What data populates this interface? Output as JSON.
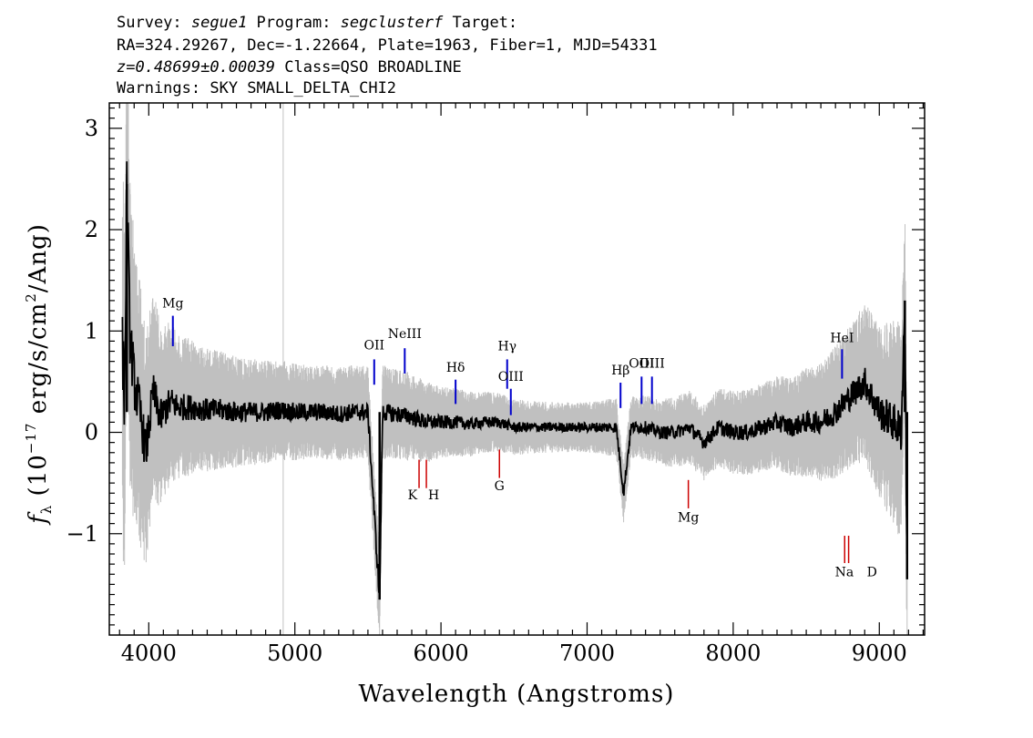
{
  "header": {
    "line1": [
      {
        "text": "Survey: ",
        "italic": false
      },
      {
        "text": "segue1",
        "italic": true
      },
      {
        "text": " Program: ",
        "italic": false
      },
      {
        "text": "segclusterf",
        "italic": true
      },
      {
        "text": " Target:",
        "italic": false
      }
    ],
    "line2": "RA=324.29267, Dec=-1.22664, Plate=1963, Fiber=1, MJD=54331",
    "line3": [
      {
        "text": "z=0.48699±0.00039",
        "italic": true
      },
      {
        "text": " Class=QSO BROADLINE",
        "italic": false
      }
    ],
    "line4": "Warnings: SKY SMALL_DELTA_CHI2"
  },
  "chart_data": {
    "type": "line",
    "xlabel": "Wavelength (Angstroms)",
    "ylabel": {
      "prefix": "f",
      "sub": "λ",
      "mid": " (10",
      "exp1": "−17",
      "after1": " erg/s/cm",
      "exp2": "2",
      "after2": "/Ang)"
    },
    "xlim": [
      3730,
      9310
    ],
    "ylim": [
      -2.0,
      3.25
    ],
    "xticks": [
      4000,
      5000,
      6000,
      7000,
      8000,
      9000
    ],
    "yticks": [
      -1,
      0,
      1,
      2,
      3
    ],
    "ytick_labels": [
      "−1",
      "0",
      "1",
      "2",
      "3"
    ],
    "colors": {
      "flux": "#000000",
      "error": "#c0c0c0",
      "emission": "#0000cc",
      "absorption": "#cc0000",
      "axes": "#000000"
    },
    "series": [
      {
        "name": "flux",
        "x": [
          3820,
          3835,
          3850,
          3870,
          3900,
          3940,
          3980,
          4030,
          4080,
          4150,
          4200,
          4300,
          4400,
          4500,
          4600,
          4700,
          4800,
          4900,
          5000,
          5100,
          5200,
          5300,
          5400,
          5500,
          5580,
          5600,
          5700,
          5800,
          5900,
          6000,
          6100,
          6200,
          6300,
          6400,
          6500,
          6600,
          6700,
          6800,
          6900,
          7000,
          7100,
          7200,
          7250,
          7300,
          7400,
          7500,
          7600,
          7700,
          7800,
          7900,
          8000,
          8100,
          8200,
          8300,
          8400,
          8500,
          8600,
          8700,
          8800,
          8900,
          9000,
          9100,
          9150,
          9175,
          9190
        ],
        "y": [
          0.8,
          0.3,
          2.45,
          1.0,
          0.5,
          0.2,
          -0.2,
          0.4,
          0.15,
          0.3,
          0.25,
          0.25,
          0.22,
          0.22,
          0.2,
          0.2,
          0.2,
          0.22,
          0.2,
          0.2,
          0.2,
          0.18,
          0.2,
          0.2,
          -1.65,
          0.2,
          0.18,
          0.15,
          0.1,
          0.1,
          0.1,
          0.08,
          0.1,
          0.1,
          0.05,
          0.05,
          0.05,
          0.05,
          0.05,
          0.05,
          0.05,
          0.05,
          -0.6,
          0.05,
          0.05,
          0.0,
          0.0,
          0.05,
          -0.1,
          0.05,
          0.0,
          0.0,
          0.05,
          0.1,
          0.05,
          0.1,
          0.1,
          0.2,
          0.35,
          0.5,
          0.2,
          0.1,
          0.0,
          1.3,
          -1.45
        ]
      },
      {
        "name": "error",
        "x": [
          3800,
          3900,
          4000,
          4100,
          4200,
          4400,
          4600,
          4800,
          5000,
          5200,
          5400,
          5600,
          5800,
          6000,
          6200,
          6400,
          6600,
          6800,
          7000,
          7200,
          7400,
          7600,
          7800,
          8000,
          8200,
          8400,
          8600,
          8800,
          9000,
          9200
        ],
        "y": [
          1.4,
          1.0,
          0.75,
          0.6,
          0.5,
          0.42,
          0.38,
          0.35,
          0.33,
          0.32,
          0.32,
          0.32,
          0.3,
          0.25,
          0.22,
          0.2,
          0.18,
          0.17,
          0.17,
          0.2,
          0.22,
          0.24,
          0.26,
          0.28,
          0.3,
          0.34,
          0.4,
          0.5,
          0.6,
          0.8
        ]
      }
    ],
    "sky_line_x": 4920,
    "emission_lines": [
      {
        "label": "Mg",
        "x": 4165,
        "y1": 0.85,
        "y2": 1.15,
        "label_y": 1.23
      },
      {
        "label": "OII",
        "x": 5543,
        "y1": 0.47,
        "y2": 0.72,
        "label_y": 0.82
      },
      {
        "label": "NeIII",
        "x": 5752,
        "y1": 0.58,
        "y2": 0.83,
        "label_y": 0.93
      },
      {
        "label": "Hδ",
        "x": 6100,
        "y1": 0.28,
        "y2": 0.52,
        "label_y": 0.6
      },
      {
        "label": "Hγ",
        "x": 6453,
        "y1": 0.43,
        "y2": 0.72,
        "label_y": 0.81
      },
      {
        "label": "OIII",
        "x": 6478,
        "y1": 0.17,
        "y2": 0.43,
        "label_y": 0.51
      },
      {
        "label": "Hβ",
        "x": 7229,
        "y1": 0.24,
        "y2": 0.49,
        "label_y": 0.57
      },
      {
        "label": "OIII",
        "x": 7373,
        "y1": 0.28,
        "y2": 0.55,
        "label_y": 0.64
      },
      {
        "label": "OIII",
        "x": 7444,
        "y1": 0.28,
        "y2": 0.55,
        "label_y": 0.64
      },
      {
        "label": "HeI",
        "x": 8745,
        "y1": 0.53,
        "y2": 0.82,
        "label_y": 0.89
      }
    ],
    "absorption_lines": [
      {
        "label": "K",
        "x": 5850,
        "y1": -0.55,
        "y2": -0.27,
        "label_y": -0.66,
        "anchor": "end",
        "dx": -2
      },
      {
        "label": "H",
        "x": 5900,
        "y1": -0.55,
        "y2": -0.27,
        "label_y": -0.66,
        "anchor": "start",
        "dx": 2
      },
      {
        "label": "G",
        "x": 6400,
        "y1": -0.45,
        "y2": -0.17,
        "label_y": -0.57,
        "anchor": "middle",
        "dx": 0
      },
      {
        "label": "Mg",
        "x": 7693,
        "y1": -0.75,
        "y2": -0.47,
        "label_y": -0.88,
        "anchor": "middle",
        "dx": 0
      },
      {
        "label": "Na",
        "x": 8763,
        "y1": -1.29,
        "y2": -1.02,
        "label_y": -1.42,
        "anchor": "end",
        "dx": 10
      },
      {
        "label": "D",
        "x": 8790,
        "y1": -1.29,
        "y2": -1.02,
        "label_y": -1.42,
        "anchor": "start",
        "dx": 20
      }
    ]
  }
}
